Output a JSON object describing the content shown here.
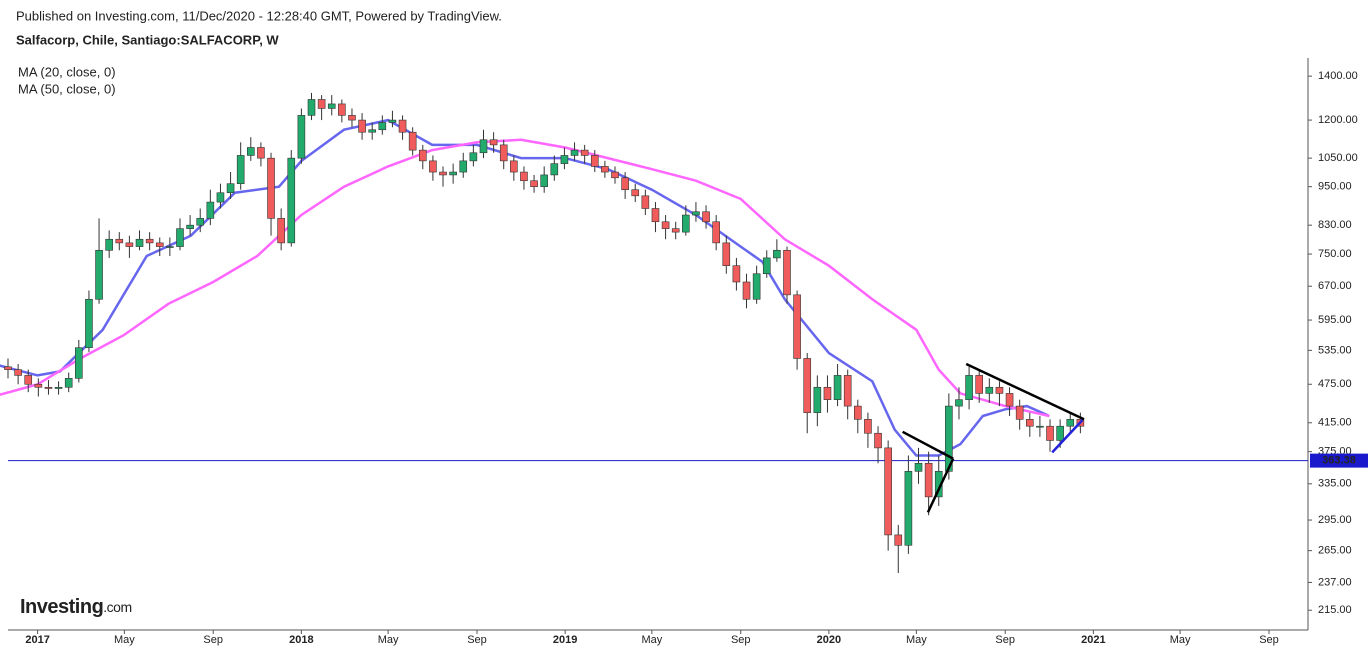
{
  "header": {
    "published": "Published on Investing.com, 11/Dec/2020 - 12:28:40 GMT, Powered by TradingView.",
    "symbol": "Salfacorp, Chile, Santiago:SALFACORP, W"
  },
  "logo": {
    "name": "Investing",
    "suffix": ".com"
  },
  "chart_data": {
    "type": "candlestick",
    "log_scale": true,
    "up_color": "#22ab6c",
    "down_color": "#f05c5c",
    "x": [
      "2016-11-21",
      "2016-12-05",
      "2016-12-19",
      "2017-01-02",
      "2017-01-16",
      "2017-01-30",
      "2017-02-13",
      "2017-02-27",
      "2017-03-13",
      "2017-03-27",
      "2017-04-10",
      "2017-04-24",
      "2017-05-08",
      "2017-05-22",
      "2017-06-05",
      "2017-06-19",
      "2017-07-03",
      "2017-07-17",
      "2017-07-31",
      "2017-08-14",
      "2017-08-28",
      "2017-09-11",
      "2017-09-25",
      "2017-10-09",
      "2017-10-23",
      "2017-11-06",
      "2017-11-20",
      "2017-12-04",
      "2017-12-18",
      "2018-01-01",
      "2018-01-15",
      "2018-01-29",
      "2018-02-12",
      "2018-02-26",
      "2018-03-12",
      "2018-03-26",
      "2018-04-09",
      "2018-04-23",
      "2018-05-07",
      "2018-05-21",
      "2018-06-04",
      "2018-06-18",
      "2018-07-02",
      "2018-07-16",
      "2018-07-30",
      "2018-08-13",
      "2018-08-27",
      "2018-09-10",
      "2018-09-24",
      "2018-10-08",
      "2018-10-22",
      "2018-11-05",
      "2018-11-19",
      "2018-12-03",
      "2018-12-17",
      "2018-12-31",
      "2019-01-14",
      "2019-01-28",
      "2019-02-11",
      "2019-02-25",
      "2019-03-11",
      "2019-03-25",
      "2019-04-08",
      "2019-04-22",
      "2019-05-06",
      "2019-05-20",
      "2019-06-03",
      "2019-06-17",
      "2019-07-01",
      "2019-07-15",
      "2019-07-29",
      "2019-08-12",
      "2019-08-26",
      "2019-09-09",
      "2019-09-23",
      "2019-10-07",
      "2019-10-21",
      "2019-11-04",
      "2019-11-18",
      "2019-12-02",
      "2019-12-16",
      "2019-12-30",
      "2020-01-13",
      "2020-01-27",
      "2020-02-10",
      "2020-02-24",
      "2020-03-09",
      "2020-03-23",
      "2020-04-06",
      "2020-04-20",
      "2020-05-04",
      "2020-05-18",
      "2020-06-01",
      "2020-06-15",
      "2020-06-29",
      "2020-07-13",
      "2020-07-27",
      "2020-08-10",
      "2020-08-24",
      "2020-09-07",
      "2020-09-21",
      "2020-10-05",
      "2020-10-19",
      "2020-11-02",
      "2020-11-16",
      "2020-11-30",
      "2020-12-14"
    ],
    "open": [
      505,
      500,
      490,
      475,
      470,
      468,
      470,
      485,
      540,
      640,
      760,
      790,
      780,
      770,
      790,
      780,
      770,
      770,
      820,
      830,
      850,
      900,
      930,
      960,
      1060,
      1090,
      1050,
      850,
      780,
      1050,
      1220,
      1290,
      1250,
      1270,
      1220,
      1200,
      1150,
      1160,
      1190,
      1200,
      1150,
      1080,
      1040,
      1000,
      990,
      1000,
      1040,
      1070,
      1120,
      1100,
      1040,
      1000,
      970,
      950,
      990,
      1030,
      1060,
      1080,
      1060,
      1020,
      1000,
      980,
      940,
      920,
      880,
      840,
      820,
      810,
      860,
      870,
      840,
      780,
      720,
      680,
      640,
      700,
      740,
      760,
      650,
      520,
      430,
      470,
      450,
      490,
      440,
      420,
      400,
      380,
      280,
      270,
      350,
      360,
      320,
      350,
      440,
      450,
      490,
      460,
      470,
      460,
      440,
      420,
      410,
      410,
      390,
      410,
      420
    ],
    "high": [
      520,
      510,
      500,
      485,
      482,
      480,
      495,
      555,
      660,
      850,
      815,
      810,
      800,
      815,
      810,
      795,
      795,
      850,
      860,
      880,
      940,
      960,
      1000,
      1110,
      1130,
      1110,
      1070,
      880,
      1080,
      1250,
      1320,
      1310,
      1310,
      1290,
      1250,
      1230,
      1190,
      1220,
      1240,
      1220,
      1170,
      1100,
      1060,
      1020,
      1030,
      1070,
      1100,
      1160,
      1150,
      1120,
      1060,
      1020,
      990,
      1020,
      1060,
      1090,
      1110,
      1100,
      1080,
      1040,
      1020,
      1000,
      960,
      940,
      900,
      860,
      840,
      890,
      900,
      890,
      860,
      800,
      740,
      700,
      720,
      760,
      790,
      770,
      660,
      530,
      490,
      490,
      510,
      500,
      450,
      430,
      410,
      390,
      290,
      370,
      380,
      375,
      370,
      460,
      470,
      505,
      500,
      485,
      480,
      470,
      450,
      430,
      425,
      420,
      420,
      430,
      430
    ],
    "low": [
      485,
      475,
      462,
      455,
      458,
      458,
      462,
      478,
      532,
      630,
      740,
      760,
      740,
      760,
      760,
      745,
      745,
      760,
      800,
      810,
      830,
      880,
      910,
      940,
      1040,
      1020,
      800,
      760,
      770,
      1030,
      1200,
      1200,
      1220,
      1190,
      1170,
      1120,
      1120,
      1140,
      1170,
      1120,
      1060,
      1010,
      970,
      950,
      960,
      980,
      1020,
      1050,
      1070,
      1010,
      970,
      940,
      930,
      930,
      970,
      1010,
      1040,
      1030,
      1000,
      980,
      960,
      910,
      900,
      860,
      810,
      790,
      790,
      800,
      840,
      820,
      760,
      700,
      660,
      620,
      630,
      690,
      730,
      630,
      500,
      400,
      410,
      430,
      440,
      420,
      400,
      380,
      360,
      265,
      245,
      262,
      335,
      300,
      310,
      340,
      420,
      435,
      445,
      445,
      440,
      425,
      405,
      395,
      395,
      375,
      380,
      400,
      400
    ],
    "close": [
      500,
      490,
      475,
      470,
      468,
      470,
      485,
      540,
      640,
      760,
      790,
      780,
      770,
      790,
      780,
      770,
      770,
      820,
      830,
      850,
      900,
      930,
      960,
      1060,
      1090,
      1050,
      850,
      780,
      1050,
      1220,
      1290,
      1250,
      1270,
      1220,
      1200,
      1150,
      1160,
      1190,
      1200,
      1150,
      1080,
      1040,
      1000,
      990,
      1000,
      1040,
      1070,
      1120,
      1100,
      1040,
      1000,
      970,
      950,
      990,
      1030,
      1060,
      1080,
      1060,
      1020,
      1000,
      980,
      940,
      920,
      880,
      840,
      820,
      810,
      860,
      870,
      840,
      780,
      720,
      680,
      640,
      700,
      740,
      760,
      650,
      520,
      430,
      470,
      450,
      490,
      440,
      420,
      400,
      380,
      280,
      270,
      350,
      360,
      320,
      350,
      440,
      450,
      490,
      460,
      470,
      460,
      440,
      420,
      410,
      410,
      390,
      410,
      420,
      410
    ],
    "series": [
      {
        "name": "MA (20, close, 0)",
        "color": "#6666ee",
        "x": [
          "2016-11",
          "2017-01",
          "2017-02",
          "2017-04",
          "2017-06",
          "2017-08",
          "2017-10",
          "2017-12",
          "2018-01",
          "2018-03",
          "2018-05",
          "2018-07",
          "2018-09",
          "2018-11",
          "2019-01",
          "2019-03",
          "2019-05",
          "2019-07",
          "2019-09",
          "2019-10",
          "2019-11",
          "2020-01",
          "2020-03",
          "2020-04",
          "2020-05",
          "2020-06",
          "2020-07",
          "2020-08",
          "2020-09",
          "2020-10",
          "2020-11"
        ],
        "values": [
          510,
          490,
          497,
          575,
          745,
          800,
          930,
          950,
          1040,
          1160,
          1200,
          1100,
          1100,
          1050,
          1050,
          1010,
          940,
          860,
          770,
          730,
          640,
          530,
          480,
          405,
          370,
          370,
          385,
          425,
          435,
          440,
          425
        ]
      },
      {
        "name": "MA (50, close, 0)",
        "color": "#ff66ff",
        "x": [
          "2016-11",
          "2017-01",
          "2017-03",
          "2017-05",
          "2017-07",
          "2017-09",
          "2017-11",
          "2018-01",
          "2018-03",
          "2018-05",
          "2018-07",
          "2018-09",
          "2018-11",
          "2019-01",
          "2019-03",
          "2019-05",
          "2019-07",
          "2019-09",
          "2019-11",
          "2020-01",
          "2020-03",
          "2020-05",
          "2020-06",
          "2020-07",
          "2020-08",
          "2020-09",
          "2020-11"
        ],
        "values": [
          455,
          475,
          520,
          565,
          630,
          680,
          745,
          860,
          950,
          1020,
          1080,
          1110,
          1120,
          1090,
          1050,
          1010,
          970,
          910,
          790,
          720,
          640,
          575,
          500,
          460,
          450,
          440,
          425
        ]
      }
    ],
    "hline": {
      "value": 363.38,
      "color": "#1a1acc"
    },
    "trend_lines": [
      {
        "color": "#000000",
        "x": [
          "2020-04-12",
          "2020-06-21"
        ],
        "values": [
          402,
          366
        ]
      },
      {
        "color": "#000000",
        "x": [
          "2020-05-17",
          "2020-06-21"
        ],
        "values": [
          303,
          366
        ]
      },
      {
        "color": "#000000",
        "x": [
          "2020-07-09",
          "2020-12-19"
        ],
        "values": [
          510,
          420
        ]
      },
      {
        "color": "#2222dd",
        "x": [
          "2020-11-05",
          "2020-12-17"
        ],
        "values": [
          374,
          419
        ]
      }
    ],
    "xlim": [
      "2016-11-21",
      "2021-10-25"
    ],
    "xticks": [
      {
        "value": "2017-01-01",
        "label": "2017"
      },
      {
        "value": "2017-05-01",
        "label": "May"
      },
      {
        "value": "2017-09-01",
        "label": "Sep"
      },
      {
        "value": "2018-01-01",
        "label": "2018"
      },
      {
        "value": "2018-05-01",
        "label": "May"
      },
      {
        "value": "2018-09-01",
        "label": "Sep"
      },
      {
        "value": "2019-01-01",
        "label": "2019"
      },
      {
        "value": "2019-05-01",
        "label": "May"
      },
      {
        "value": "2019-09-01",
        "label": "Sep"
      },
      {
        "value": "2020-01-01",
        "label": "2020"
      },
      {
        "value": "2020-05-01",
        "label": "May"
      },
      {
        "value": "2020-09-01",
        "label": "Sep"
      },
      {
        "value": "2021-01-01",
        "label": "2021"
      },
      {
        "value": "2021-05-01",
        "label": "May"
      },
      {
        "value": "2021-09-01",
        "label": "Sep"
      }
    ],
    "ylim": [
      202,
      1492
    ],
    "yticks": [
      {
        "value": 1400,
        "label": "1400.00"
      },
      {
        "value": 1200,
        "label": "1200.00"
      },
      {
        "value": 1050,
        "label": "1050.00"
      },
      {
        "value": 950,
        "label": "950.00"
      },
      {
        "value": 830,
        "label": "830.00"
      },
      {
        "value": 750,
        "label": "750.00"
      },
      {
        "value": 670,
        "label": "670.00"
      },
      {
        "value": 595,
        "label": "595.00"
      },
      {
        "value": 535,
        "label": "535.00"
      },
      {
        "value": 475,
        "label": "475.00"
      },
      {
        "value": 415,
        "label": "415.00"
      },
      {
        "value": 375,
        "label": "375.00"
      },
      {
        "value": 335,
        "label": "335.00"
      },
      {
        "value": 295,
        "label": "295.00"
      },
      {
        "value": 265,
        "label": "265.00"
      },
      {
        "value": 237,
        "label": "237.00"
      },
      {
        "value": 215,
        "label": "215.00"
      }
    ]
  }
}
